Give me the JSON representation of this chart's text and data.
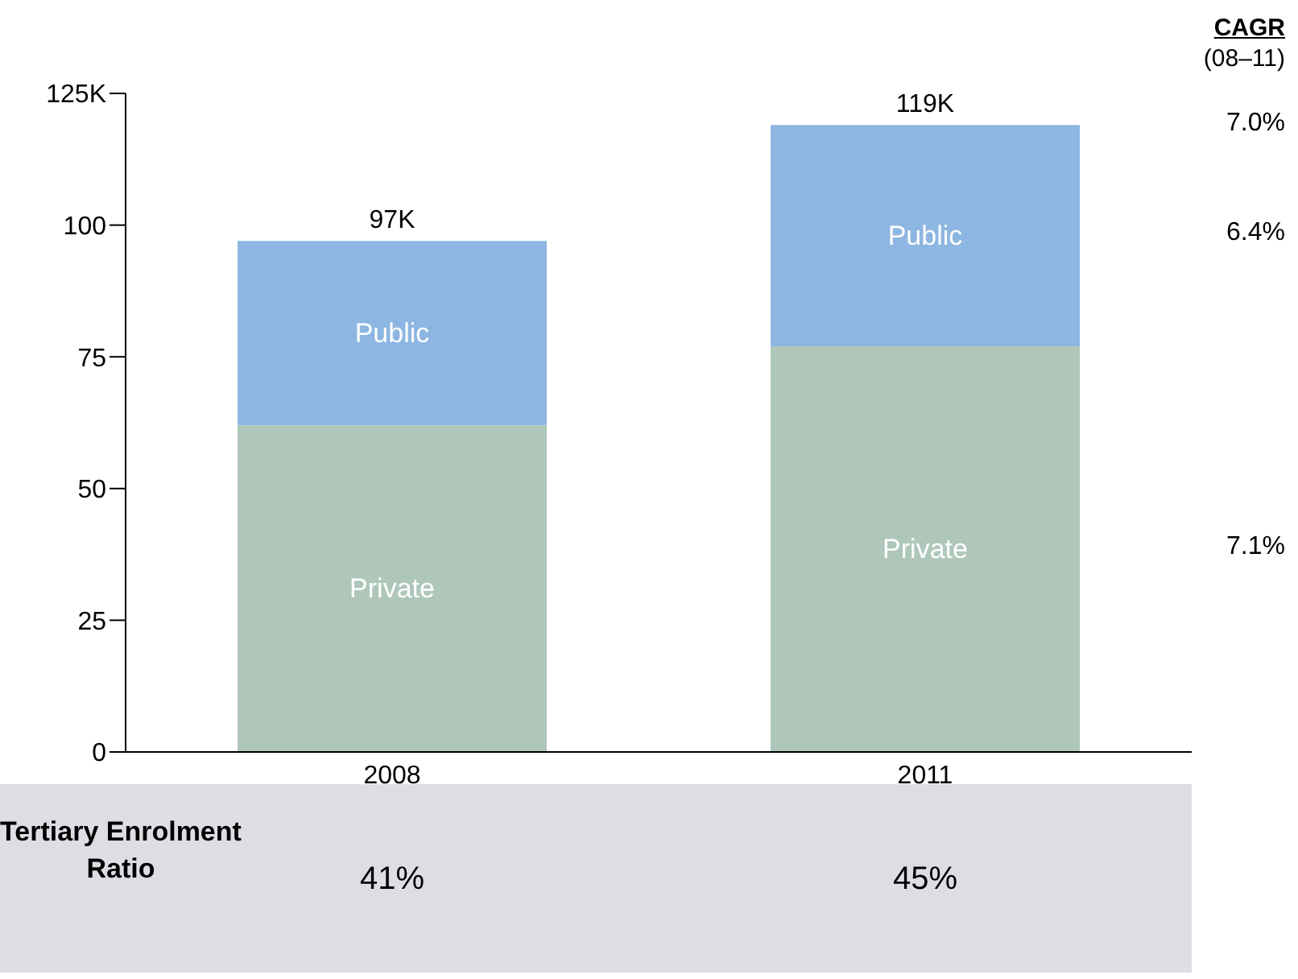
{
  "chart_data": {
    "type": "bar",
    "stacked": true,
    "categories": [
      "2008",
      "2011"
    ],
    "series": [
      {
        "name": "Private",
        "color": "#afc7bb",
        "values": [
          62,
          77
        ]
      },
      {
        "name": "Public",
        "color": "#8db6e2",
        "values": [
          35,
          42
        ]
      }
    ],
    "totals": [
      "97K",
      "119K"
    ],
    "ylim": [
      0,
      125
    ],
    "yticks": [
      0,
      25,
      50,
      75,
      100,
      {
        "value": 125,
        "label": "125K"
      }
    ],
    "grid": false,
    "legend": false,
    "annotations": [
      "CAGR",
      "(08–11)",
      "7.0%",
      "6.4%",
      "7.1%",
      "Tertiary Enrolment Ratio",
      "41%",
      "45%"
    ]
  }
}
